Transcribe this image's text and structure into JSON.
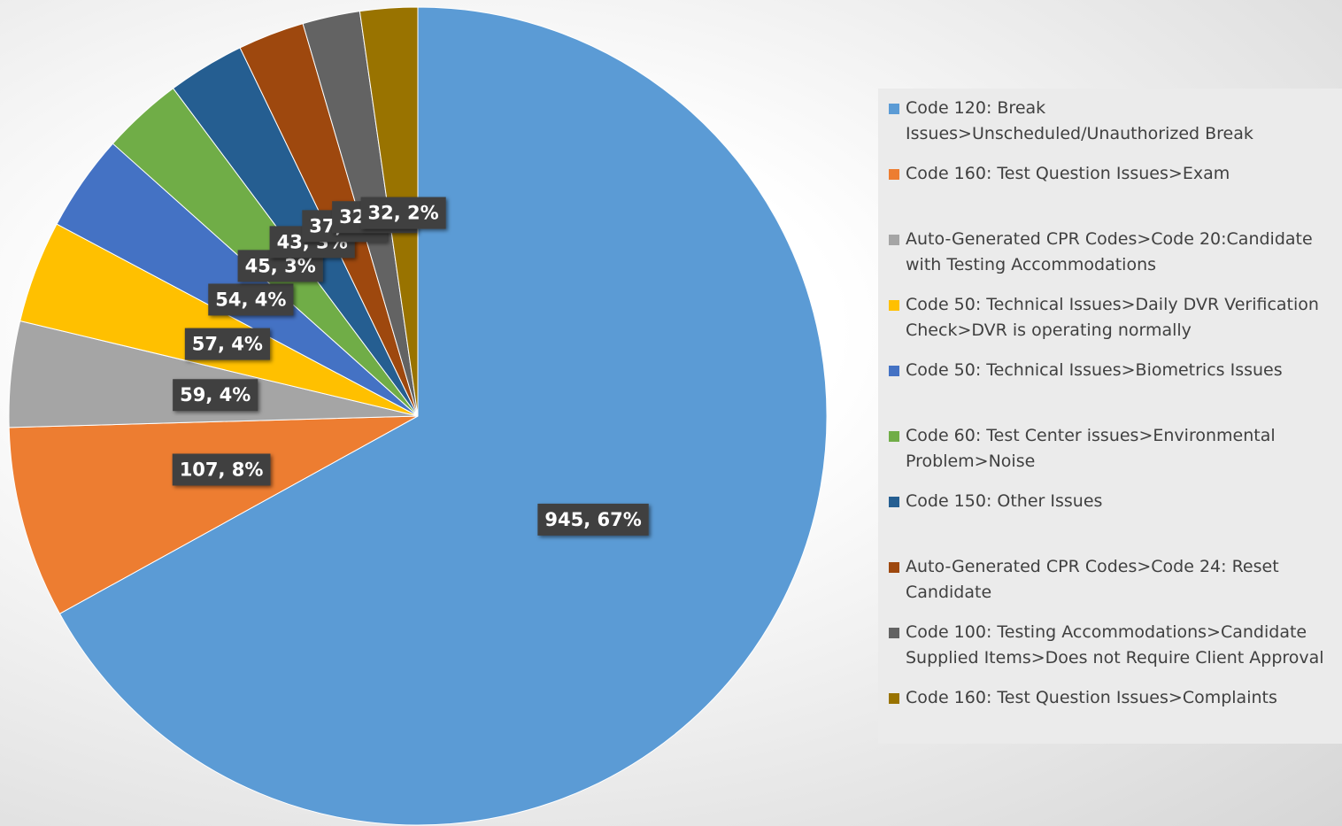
{
  "chart_data": {
    "type": "pie",
    "categories": [
      "Code 120: Break Issues>Unscheduled/Unauthorized Break",
      "Code 160: Test Question Issues>Exam",
      "Auto-Generated CPR Codes>Code 20:Candidate with Testing Accommodations",
      "Code 50: Technical Issues>Daily DVR Verification Check>DVR is operating normally",
      "Code 50: Technical Issues>Biometrics Issues",
      "Code 60: Test Center issues>Environmental Problem>Noise",
      "Code 150: Other Issues",
      "Auto-Generated CPR Codes>Code 24: Reset Candidate",
      "Code 100: Testing Accommodations>Candidate Supplied Items>Does not Require Client Approval",
      "Code 160: Test Question Issues>Complaints"
    ],
    "values": [
      945,
      107,
      59,
      57,
      54,
      45,
      43,
      37,
      32,
      32
    ],
    "value_labels": [
      "945, 67%",
      "107, 8%",
      "59, 4%",
      "57, 4%",
      "54, 4%",
      "45, 3%",
      "43, 3%",
      "37, 3%",
      "32, 2%",
      "32, 2%"
    ],
    "colors": [
      "#5b9bd5",
      "#ed7d31",
      "#a5a5a5",
      "#ffc000",
      "#4472c4",
      "#70ad47",
      "#255e91",
      "#9e480e",
      "#636363",
      "#997300"
    ],
    "legend": "right"
  }
}
